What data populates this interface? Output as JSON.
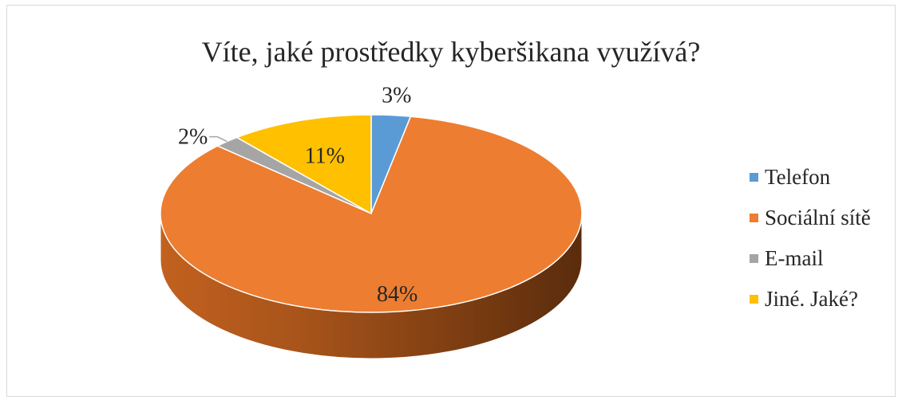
{
  "chart_data": {
    "type": "pie",
    "style": "3d",
    "title": "Víte, jaké prostředky kyberšikana využívá?",
    "categories": [
      "Telefon",
      "Sociální sítě",
      "E-mail",
      "Jiné. Jaké?"
    ],
    "values": [
      3,
      84,
      2,
      11
    ],
    "labels": [
      "3%",
      "84%",
      "2%",
      "11%"
    ],
    "colors": [
      "#5b9bd5",
      "#ed7d31",
      "#a5a5a5",
      "#ffc000"
    ],
    "legend_position": "right"
  }
}
